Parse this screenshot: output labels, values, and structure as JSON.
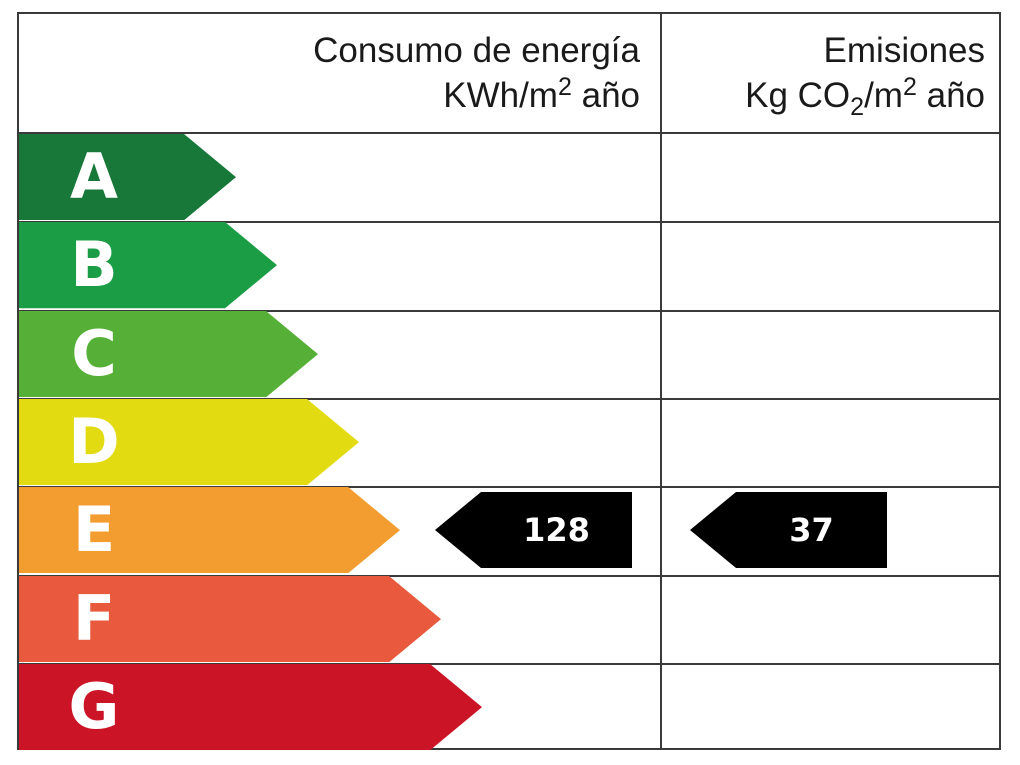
{
  "header": {
    "energy_title": "Consumo de energía",
    "energy_unit_pre": "KWh/m",
    "energy_unit_sup": "2",
    "energy_unit_post": " año",
    "emissions_title": "Emisiones",
    "emissions_unit_pre": "Kg CO",
    "emissions_unit_sub": "2",
    "emissions_unit_mid": "/m",
    "emissions_unit_sup": "2",
    "emissions_unit_post": " año"
  },
  "classes": [
    {
      "letter": "A",
      "color": "#17783a"
    },
    {
      "letter": "B",
      "color": "#1b9d45"
    },
    {
      "letter": "C",
      "color": "#56b037"
    },
    {
      "letter": "D",
      "color": "#e3db12"
    },
    {
      "letter": "E",
      "color": "#f39c30"
    },
    {
      "letter": "F",
      "color": "#e8593d"
    },
    {
      "letter": "G",
      "color": "#cc1427"
    }
  ],
  "rating": {
    "class": "E",
    "energy_value": "128",
    "emissions_value": "37",
    "marker_color": "#000000"
  }
}
